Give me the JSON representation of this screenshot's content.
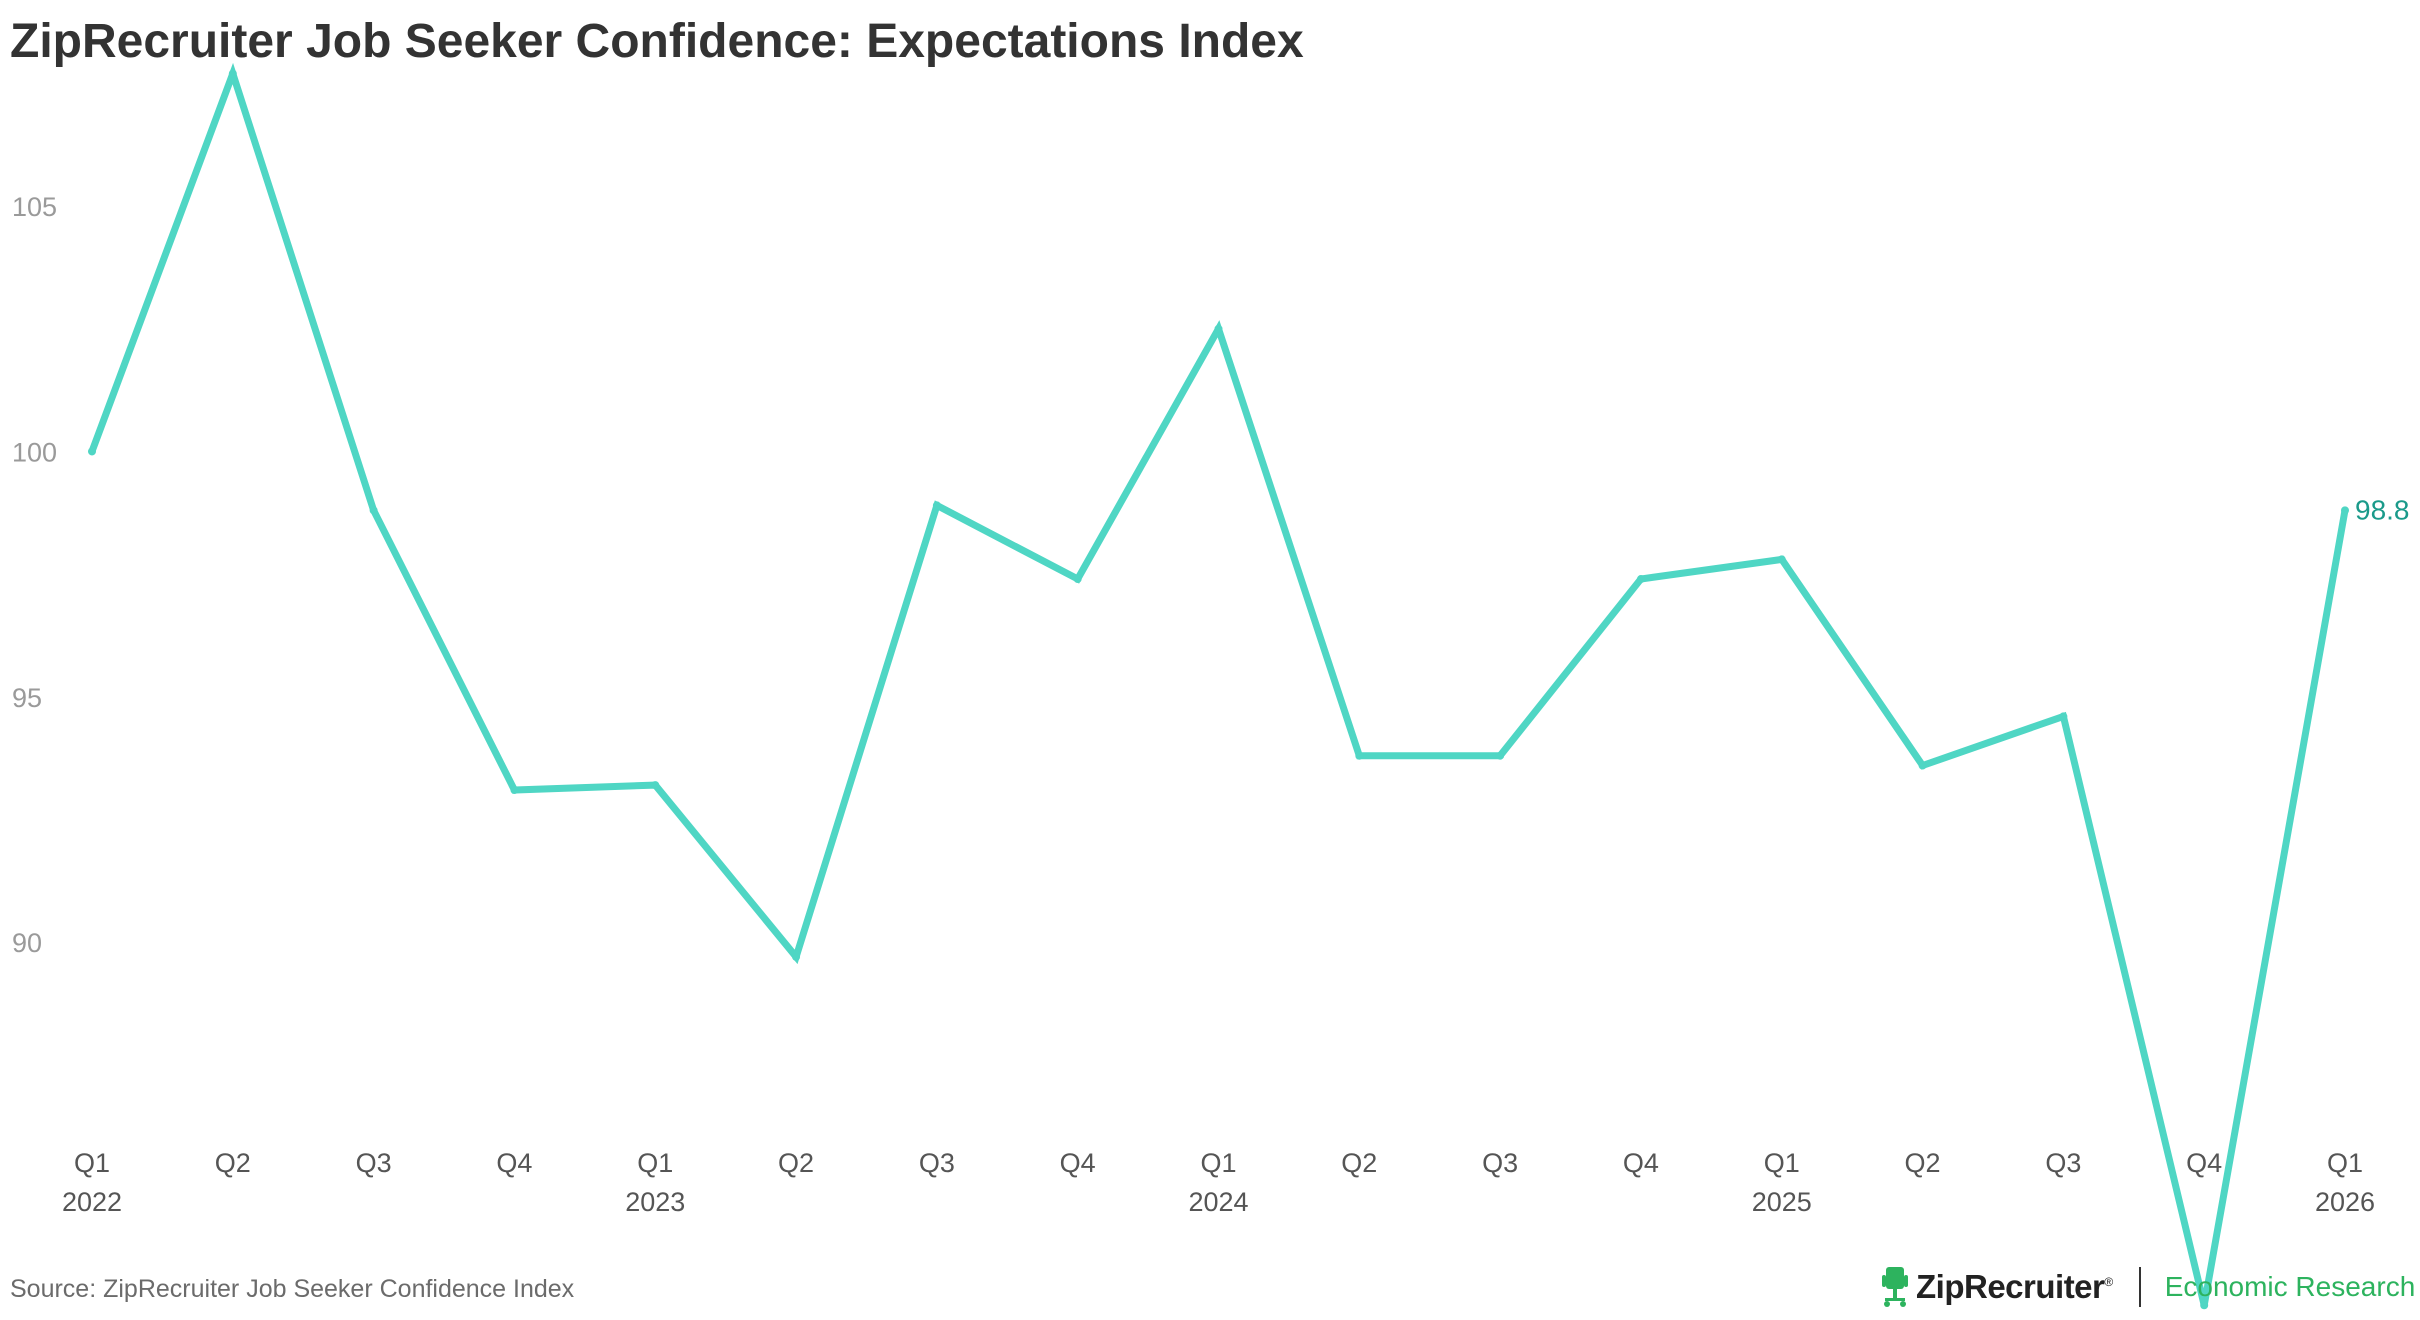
{
  "chart_data": {
    "type": "line",
    "title": "ZipRecruiter Job Seeker Confidence: Expectations Index",
    "xlabel": "",
    "ylabel": "",
    "ylim": [
      82.3,
      109.2
    ],
    "y_ticks": [
      90,
      95,
      100,
      105
    ],
    "grid": false,
    "legend": "none",
    "categories": [
      {
        "quarter": "Q1",
        "year": "2022"
      },
      {
        "quarter": "Q2",
        "year": ""
      },
      {
        "quarter": "Q3",
        "year": ""
      },
      {
        "quarter": "Q4",
        "year": ""
      },
      {
        "quarter": "Q1",
        "year": "2023"
      },
      {
        "quarter": "Q2",
        "year": ""
      },
      {
        "quarter": "Q3",
        "year": ""
      },
      {
        "quarter": "Q4",
        "year": ""
      },
      {
        "quarter": "Q1",
        "year": "2024"
      },
      {
        "quarter": "Q2",
        "year": ""
      },
      {
        "quarter": "Q3",
        "year": ""
      },
      {
        "quarter": "Q4",
        "year": ""
      },
      {
        "quarter": "Q1",
        "year": "2025"
      },
      {
        "quarter": "Q2",
        "year": ""
      },
      {
        "quarter": "Q3",
        "year": ""
      },
      {
        "quarter": "Q4",
        "year": ""
      },
      {
        "quarter": "Q1",
        "year": "2026"
      }
    ],
    "series": [
      {
        "name": "Expectations Index",
        "color": "#4fd6c4",
        "values": [
          100.0,
          107.7,
          98.8,
          93.1,
          93.2,
          89.7,
          98.9,
          97.4,
          102.5,
          93.8,
          93.8,
          97.4,
          97.8,
          93.6,
          94.6,
          82.6,
          98.8
        ],
        "end_label": "98.8",
        "end_label_color": "#1a9a8a"
      }
    ]
  },
  "footer": {
    "source": "Source: ZipRecruiter Job Seeker Confidence Index",
    "brand_name": "ZipRecruiter",
    "brand_mark": "®",
    "brand_icon": "chair-icon",
    "brand_unit": "Economic Research",
    "brand_color": "#2db35e"
  }
}
